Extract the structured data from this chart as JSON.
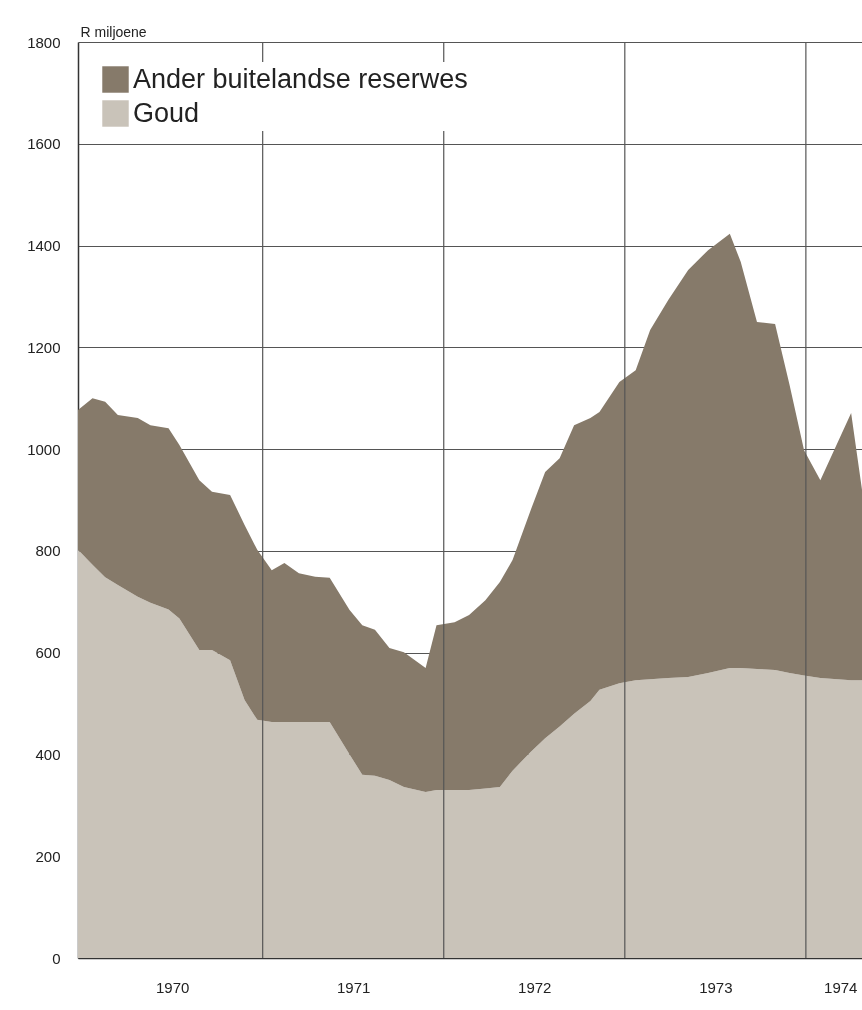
{
  "chart_data": {
    "type": "area",
    "stacked": true,
    "ylabel": "R miljoene",
    "x": [
      1969.98,
      1970.06,
      1970.13,
      1970.2,
      1970.31,
      1970.38,
      1970.48,
      1970.54,
      1970.65,
      1970.72,
      1970.82,
      1970.9,
      1970.97,
      1971.05,
      1971.12,
      1971.2,
      1971.29,
      1971.37,
      1971.48,
      1971.55,
      1971.62,
      1971.7,
      1971.78,
      1971.9,
      1971.96,
      1972.06,
      1972.14,
      1972.23,
      1972.31,
      1972.38,
      1972.48,
      1972.56,
      1972.64,
      1972.72,
      1972.81,
      1972.86,
      1972.97,
      1973.06,
      1973.14,
      1973.24,
      1973.35,
      1973.46,
      1973.58,
      1973.64,
      1973.73,
      1973.83,
      1973.91,
      1973.99,
      1974.08,
      1974.25,
      1974.31
    ],
    "series": [
      {
        "name": "Goud",
        "color": "#c9c3b9",
        "values": [
          802,
          773,
          748,
          733,
          710,
          698,
          685,
          667,
          605,
          605,
          585,
          507,
          468,
          464,
          464,
          464,
          464,
          464,
          400,
          360,
          358,
          350,
          336,
          326,
          330,
          330,
          330,
          333,
          336,
          368,
          405,
          432,
          455,
          480,
          505,
          527,
          540,
          546,
          548,
          550,
          552,
          560,
          570,
          570,
          568,
          566,
          560,
          555,
          550,
          546,
          546
        ]
      },
      {
        "name": "Ander buitelandse reserwes",
        "color": "#867a6a",
        "values": [
          275,
          327,
          345,
          334,
          351,
          349,
          356,
          341,
          334,
          311,
          325,
          344,
          334,
          298,
          312,
          292,
          285,
          283,
          284,
          294,
          287,
          259,
          265,
          244,
          324,
          330,
          344,
          370,
          403,
          414,
          475,
          523,
          527,
          567,
          556,
          546,
          592,
          609,
          686,
          743,
          800,
          831,
          853,
          798,
          682,
          680,
          566,
          443,
          389,
          525,
          374
        ]
      }
    ],
    "xlim": [
      1969.98,
      1974.31
    ],
    "xticks": [
      {
        "value": 1970.5,
        "label": "1970"
      },
      {
        "value": 1971.5,
        "label": "1971"
      },
      {
        "value": 1972.5,
        "label": "1972"
      },
      {
        "value": 1973.5,
        "label": "1973"
      },
      {
        "value": 1974.19,
        "label": "1974"
      }
    ],
    "ylim": [
      0,
      1800
    ],
    "yticks": [
      0,
      200,
      400,
      600,
      800,
      1000,
      1200,
      1400,
      1600,
      1800
    ],
    "ref_lines": [
      {
        "axis": "x",
        "value": 1971
      },
      {
        "axis": "x",
        "value": 1972
      },
      {
        "axis": "x",
        "value": 1973
      },
      {
        "axis": "x",
        "value": 1974
      }
    ],
    "grid": "y",
    "legend": "top left"
  }
}
